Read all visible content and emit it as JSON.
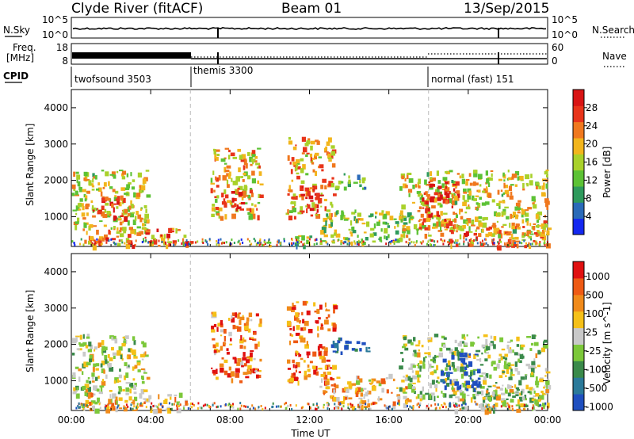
{
  "header": {
    "station": "Clyde River (fitACF)",
    "beam": "Beam 01",
    "date": "13/Sep/2015"
  },
  "status_panels": {
    "nsky_label": "N.Sky",
    "nsky_ticks": [
      "10^5",
      "10^0"
    ],
    "nsearch_label": "N.Search",
    "nsearch_ticks": [
      "10^5",
      "10^0"
    ],
    "freq_label_line1": "Freq.",
    "freq_label_line2": "[MHz]",
    "freq_ticks": [
      "18",
      "8"
    ],
    "nave_label": "Nave",
    "nave_ticks": [
      "60",
      "0"
    ],
    "cpid_label": "CPID",
    "cpid_segments": [
      {
        "name": "twofsound 3503",
        "start_hr": 0
      },
      {
        "name": "themis 3300",
        "start_hr": 6
      },
      {
        "name": "normal (fast) 151",
        "start_hr": 18
      }
    ]
  },
  "chart_data": [
    {
      "type": "heatmap",
      "title": "",
      "parameter": "Power",
      "xlabel": "Time UT",
      "ylabel": "Slant Range [km]",
      "xlim_hours": [
        0,
        24
      ],
      "ylim": [
        180,
        4500
      ],
      "x_tick_labels": [
        "00:00",
        "04:00",
        "08:00",
        "12:00",
        "16:00",
        "20:00",
        "00:00"
      ],
      "y_ticks": [
        1000,
        2000,
        3000,
        4000
      ],
      "colorbar": {
        "label": "Power [dB]",
        "range": [
          0,
          32
        ],
        "ticks": [
          "4",
          "8",
          "12",
          "16",
          "20",
          "24",
          "28"
        ],
        "colors": [
          "#1428f0",
          "#2a6ab8",
          "#2e9a5c",
          "#5cc235",
          "#a9d12a",
          "#f2b51c",
          "#f0781e",
          "#e8341a",
          "#d81414"
        ]
      },
      "scatter_regions": [
        {
          "t": [
            0.0,
            3.8
          ],
          "range": [
            600,
            2300
          ],
          "level": 0.55
        },
        {
          "t": [
            1.0,
            3.0
          ],
          "range": [
            1000,
            1600
          ],
          "level": 0.9
        },
        {
          "t": [
            0.5,
            6.0
          ],
          "range": [
            200,
            700
          ],
          "level": 0.7
        },
        {
          "t": [
            7.0,
            9.5
          ],
          "range": [
            1000,
            2900
          ],
          "level": 0.6
        },
        {
          "t": [
            8.0,
            9.0
          ],
          "range": [
            1200,
            1800
          ],
          "level": 0.85
        },
        {
          "t": [
            10.8,
            13.2
          ],
          "range": [
            1000,
            3200
          ],
          "level": 0.65
        },
        {
          "t": [
            11.5,
            12.5
          ],
          "range": [
            1200,
            2000
          ],
          "level": 0.9
        },
        {
          "t": [
            9.5,
            12.0
          ],
          "range": [
            200,
            500
          ],
          "level": 0.4
        },
        {
          "t": [
            12.5,
            17.0
          ],
          "range": [
            300,
            1200
          ],
          "level": 0.45
        },
        {
          "t": [
            13.0,
            15.0
          ],
          "range": [
            1800,
            2200
          ],
          "level": 0.35
        },
        {
          "t": [
            16.5,
            24.0
          ],
          "range": [
            500,
            2300
          ],
          "level": 0.55
        },
        {
          "t": [
            17.5,
            19.5
          ],
          "range": [
            700,
            2000
          ],
          "level": 0.85
        },
        {
          "t": [
            19.0,
            24.0
          ],
          "range": [
            200,
            900
          ],
          "level": 0.7
        }
      ]
    },
    {
      "type": "heatmap",
      "title": "",
      "parameter": "Velocity",
      "xlabel": "Time UT",
      "ylabel": "Slant Range [km]",
      "xlim_hours": [
        0,
        24
      ],
      "ylim": [
        180,
        4500
      ],
      "x_tick_labels": [
        "00:00",
        "04:00",
        "08:00",
        "12:00",
        "16:00",
        "20:00",
        "00:00"
      ],
      "y_ticks": [
        1000,
        2000,
        3000,
        4000
      ],
      "colorbar": {
        "label": "Velocity [m s^-1]",
        "range": [
          -1200,
          1200
        ],
        "ticks": [
          "1000",
          "500",
          "100",
          "25",
          "-25",
          "-100",
          "-500",
          "-1000"
        ],
        "colors": [
          "#1f4fbf",
          "#2b7a9a",
          "#3a8a4a",
          "#7cc83a",
          "#c9c9c9",
          "#f5c018",
          "#f08a1a",
          "#ee5a14",
          "#e01010"
        ]
      },
      "scatter_regions": [
        {
          "t": [
            0.0,
            3.8
          ],
          "range": [
            600,
            2300
          ],
          "level": 0.5
        },
        {
          "t": [
            0.5,
            6.0
          ],
          "range": [
            200,
            700
          ],
          "level": 0.6
        },
        {
          "t": [
            7.0,
            9.5
          ],
          "range": [
            1000,
            2900
          ],
          "level": 0.75
        },
        {
          "t": [
            10.8,
            13.2
          ],
          "range": [
            1000,
            3200
          ],
          "level": 0.8
        },
        {
          "t": [
            12.5,
            17.0
          ],
          "range": [
            300,
            1200
          ],
          "level": 0.65
        },
        {
          "t": [
            13.0,
            15.0
          ],
          "range": [
            1800,
            2200
          ],
          "level": 0.1
        },
        {
          "t": [
            16.5,
            24.0
          ],
          "range": [
            500,
            2300
          ],
          "level": 0.45
        },
        {
          "t": [
            18.5,
            20.5
          ],
          "range": [
            800,
            1800
          ],
          "level": 0.1
        },
        {
          "t": [
            19.0,
            24.0
          ],
          "range": [
            200,
            900
          ],
          "level": 0.5
        }
      ]
    }
  ]
}
